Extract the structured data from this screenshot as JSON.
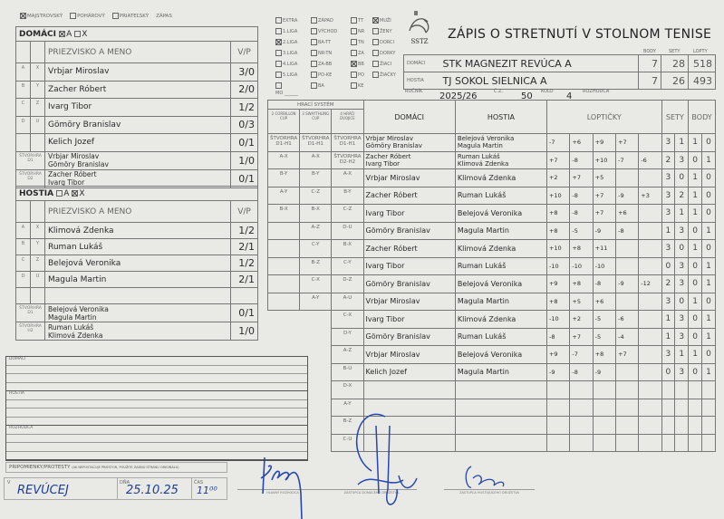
{
  "form": {
    "type_options": [
      {
        "label": "MAJSTROVSKÝ",
        "checked": true
      },
      {
        "label": "POHÁROVÝ",
        "checked": false
      },
      {
        "label": "PRIATEĽSKÝ",
        "checked": false
      }
    ],
    "type_suffix": "ZÁPAS",
    "title": "ZÁPIS O STRETNUTÍ V STOLNOM TENISE",
    "logo_text": "SSTZ",
    "league_options": [
      [
        {
          "label": "EXTRA",
          "checked": false
        },
        {
          "label": "1.LIGA",
          "checked": false
        },
        {
          "label": "2.LIGA",
          "checked": true
        },
        {
          "label": "3.LIGA",
          "checked": false
        },
        {
          "label": "4.LIGA",
          "checked": false
        },
        {
          "label": "5.LIGA",
          "checked": false
        },
        {
          "label": "",
          "checked": false
        }
      ],
      [
        {
          "label": "ZÁPAD",
          "checked": false
        },
        {
          "label": "VÝCHOD",
          "checked": false
        },
        {
          "label": "BA-TT",
          "checked": false
        },
        {
          "label": "NR-TN",
          "checked": false
        },
        {
          "label": "ZA-BB",
          "checked": false
        },
        {
          "label": "PO-KE",
          "checked": false
        },
        {
          "label": "BA",
          "checked": false
        }
      ],
      [
        {
          "label": "TT",
          "checked": false
        },
        {
          "label": "NR",
          "checked": false
        },
        {
          "label": "TN",
          "checked": false
        },
        {
          "label": "ZA",
          "checked": false
        },
        {
          "label": "BB",
          "checked": true
        },
        {
          "label": "PO",
          "checked": false
        },
        {
          "label": "KE",
          "checked": false
        }
      ],
      [
        {
          "label": "MUŽI",
          "checked": true
        },
        {
          "label": "ŽENY",
          "checked": false
        },
        {
          "label": "DORCI",
          "checked": false
        },
        {
          "label": "DORKY",
          "checked": false
        },
        {
          "label": "ŽIACI",
          "checked": false
        },
        {
          "label": "ŽIAČKY",
          "checked": false
        }
      ]
    ],
    "mo_label": "MO"
  },
  "home": {
    "heading": "DOMÁCI",
    "opt_a": "A",
    "opt_x": "X",
    "a_checked": true,
    "x_checked": false,
    "col_name": "PRIEZVISKO A MENO",
    "col_vp": "V/P",
    "players": [
      {
        "k1": "A",
        "k2": "X",
        "name": "Vrbjar Miroslav",
        "vp": "3/0"
      },
      {
        "k1": "B",
        "k2": "Y",
        "name": "Zacher Róbert",
        "vp": "2/0"
      },
      {
        "k1": "C",
        "k2": "Z",
        "name": "Ivarg Tibor",
        "vp": "1/2"
      },
      {
        "k1": "D",
        "k2": "U",
        "name": "Gömöry Branislav",
        "vp": "0/3"
      },
      {
        "k1": "",
        "k2": "",
        "name": "Kelich Jozef",
        "vp": "0/1"
      }
    ],
    "doubles": [
      {
        "label": "ŠTVORHRA D1",
        "p1": "Vrbjar Miroslav",
        "p2": "Gömöry Branislav",
        "vp": "1/0"
      },
      {
        "label": "ŠTVORHRA D2",
        "p1": "Zacher Róbert",
        "p2": "Ivarg Tibor",
        "vp": "0/1"
      }
    ]
  },
  "away": {
    "heading": "HOSTIA",
    "opt_a": "A",
    "opt_x": "X",
    "a_checked": false,
    "x_checked": true,
    "col_name": "PRIEZVISKO A MENO",
    "col_vp": "V/P",
    "players": [
      {
        "k1": "A",
        "k2": "X",
        "name": "Klimová Zdenka",
        "vp": "1/2"
      },
      {
        "k1": "B",
        "k2": "Y",
        "name": "Ruman Lukáš",
        "vp": "2/1"
      },
      {
        "k1": "C",
        "k2": "Z",
        "name": "Belejová Veronika",
        "vp": "1/2"
      },
      {
        "k1": "D",
        "k2": "U",
        "name": "Magula Martin",
        "vp": "2/1"
      },
      {
        "k1": "",
        "k2": "",
        "name": "",
        "vp": ""
      }
    ],
    "doubles": [
      {
        "label": "ŠTVORHRA D1",
        "p1": "Belejová Veronika",
        "p2": "Magula Martin",
        "vp": "0/1"
      },
      {
        "label": "ŠTVORHRA H2",
        "p1": "Ruman Lukáš",
        "p2": "Klimová Zdenka",
        "vp": "1/0"
      }
    ]
  },
  "summary": {
    "col_body": "BODY",
    "col_sety": "SETY",
    "col_lopty": "LOPTY",
    "home_label": "DOMÁCI",
    "home_team": "STK MAGNEZIT REVÚCA A",
    "home_body": "7",
    "home_sety": "28",
    "home_lopty": "518",
    "away_label": "HOSTIA",
    "away_team": "TJ SOKOL SIELNICA A",
    "away_body": "7",
    "away_sety": "26",
    "away_lopty": "493",
    "rocnik_label": "ROČNÍK",
    "rocnik": "2025/26",
    "cz_label": "Č.Z.",
    "cz": "50",
    "kolo_label": "KOLO",
    "kolo": "4",
    "rozhodca_label": "ROZHODCA",
    "rozhodca": ""
  },
  "matches": {
    "system_label": "HRACÍ SYSTÉM",
    "sys_headers": [
      "2 CORBILLON CUP",
      "3 SWAYTHLING CUP",
      "4 HRÁČI DVOJICE"
    ],
    "col_home": "DOMÁCI",
    "col_away": "HOSTIA",
    "col_balls": "LOPTIČKY",
    "col_sets": "SETY",
    "col_points": "BODY",
    "rows": [
      {
        "s1": "ŠTVORHRA D1-H1",
        "s2": "ŠTVORHRA D1-H1",
        "s3": "ŠTVORHRA D1-H1",
        "home": "Vrbjar Miroslav / Gömöry Branislav",
        "away": "Belejová Veronika / Magula Martin",
        "balls": [
          "-7",
          "+6",
          "+9",
          "+7",
          ""
        ],
        "sets": [
          "3",
          "1"
        ],
        "points": [
          "1",
          "0"
        ]
      },
      {
        "s1": "A-X",
        "s2": "A-X",
        "s3": "ŠTVORHRA D2-H2",
        "home": "Zacher Róbert / Ivarg Tibor",
        "away": "Ruman Lukáš / Klimová Zdenka",
        "balls": [
          "+7",
          "-8",
          "+10",
          "-7",
          "-6"
        ],
        "sets": [
          "2",
          "3"
        ],
        "points": [
          "0",
          "1"
        ]
      },
      {
        "s1": "B-Y",
        "s2": "B-Y",
        "s3": "A-X",
        "home": "Vrbjar Miroslav",
        "away": "Klimová Zdenka",
        "balls": [
          "+2",
          "+7",
          "+5",
          "",
          ""
        ],
        "sets": [
          "3",
          "0"
        ],
        "points": [
          "1",
          "0"
        ]
      },
      {
        "s1": "A-Y",
        "s2": "C-Z",
        "s3": "B-Y",
        "home": "Zacher Róbert",
        "away": "Ruman Lukáš",
        "balls": [
          "+10",
          "-8",
          "+7",
          "-9",
          "+3"
        ],
        "sets": [
          "3",
          "2"
        ],
        "points": [
          "1",
          "0"
        ]
      },
      {
        "s1": "B-X",
        "s2": "B-X",
        "s3": "C-Z",
        "home": "Ivarg Tibor",
        "away": "Belejová Veronika",
        "balls": [
          "+8",
          "-8",
          "+7",
          "+6",
          ""
        ],
        "sets": [
          "3",
          "1"
        ],
        "points": [
          "1",
          "0"
        ]
      },
      {
        "s1": "",
        "s2": "A-Z",
        "s3": "D-U",
        "home": "Gömöry Branislav",
        "away": "Magula Martin",
        "balls": [
          "+8",
          "-5",
          "-9",
          "-8",
          ""
        ],
        "sets": [
          "1",
          "3"
        ],
        "points": [
          "0",
          "1"
        ]
      },
      {
        "s1": "",
        "s2": "C-Y",
        "s3": "B-X",
        "home": "Zacher Róbert",
        "away": "Klimová Zdenka",
        "balls": [
          "+10",
          "+8",
          "+11",
          "",
          ""
        ],
        "sets": [
          "3",
          "0"
        ],
        "points": [
          "1",
          "0"
        ]
      },
      {
        "s1": "",
        "s2": "B-Z",
        "s3": "C-Y",
        "home": "Ivarg Tibor",
        "away": "Ruman Lukáš",
        "balls": [
          "-10",
          "-10",
          "-10",
          "",
          ""
        ],
        "sets": [
          "0",
          "3"
        ],
        "points": [
          "0",
          "1"
        ]
      },
      {
        "s1": "",
        "s2": "C-X",
        "s3": "D-Z",
        "home": "Gömöry Branislav",
        "away": "Belejová Veronika",
        "balls": [
          "+9",
          "+8",
          "-8",
          "-9",
          "-12"
        ],
        "sets": [
          "2",
          "3"
        ],
        "points": [
          "0",
          "1"
        ]
      },
      {
        "s1": "",
        "s2": "A-Y",
        "s3": "A-U",
        "home": "Vrbjar Miroslav",
        "away": "Magula Martin",
        "balls": [
          "+8",
          "+5",
          "+6",
          "",
          ""
        ],
        "sets": [
          "3",
          "0"
        ],
        "points": [
          "1",
          "0"
        ]
      },
      {
        "s1": null,
        "s2": null,
        "s3": "C-X",
        "home": "Ivarg Tibor",
        "away": "Klimová Zdenka",
        "balls": [
          "-10",
          "+2",
          "-5",
          "-6",
          ""
        ],
        "sets": [
          "1",
          "3"
        ],
        "points": [
          "0",
          "1"
        ]
      },
      {
        "s1": null,
        "s2": null,
        "s3": "D-Y",
        "home": "Gömöry Branislav",
        "away": "Ruman Lukáš",
        "balls": [
          "-8",
          "+7",
          "-5",
          "-4",
          ""
        ],
        "sets": [
          "1",
          "3"
        ],
        "points": [
          "0",
          "1"
        ]
      },
      {
        "s1": null,
        "s2": null,
        "s3": "A-Z",
        "home": "Vrbjar Miroslav",
        "away": "Belejová Veronika",
        "balls": [
          "+9",
          "-7",
          "+8",
          "+7",
          ""
        ],
        "sets": [
          "3",
          "1"
        ],
        "points": [
          "1",
          "0"
        ]
      },
      {
        "s1": null,
        "s2": null,
        "s3": "B-U",
        "home": "Kelich Jozef",
        "away": "Magula Martin",
        "balls": [
          "-9",
          "-8",
          "-9",
          "",
          ""
        ],
        "sets": [
          "0",
          "3"
        ],
        "points": [
          "0",
          "1"
        ]
      },
      {
        "s1": null,
        "s2": null,
        "s3": "D-X",
        "home": "",
        "away": "",
        "balls": [
          "",
          "",
          "",
          "",
          ""
        ],
        "sets": [
          "",
          ""
        ],
        "points": [
          "",
          ""
        ]
      },
      {
        "s1": null,
        "s2": null,
        "s3": "A-Y",
        "home": "",
        "away": "",
        "balls": [
          "",
          "",
          "",
          "",
          ""
        ],
        "sets": [
          "",
          ""
        ],
        "points": [
          "",
          ""
        ]
      },
      {
        "s1": null,
        "s2": null,
        "s3": "B-Z",
        "home": "",
        "away": "",
        "balls": [
          "",
          "",
          "",
          "",
          ""
        ],
        "sets": [
          "",
          ""
        ],
        "points": [
          "",
          ""
        ]
      },
      {
        "s1": null,
        "s2": null,
        "s3": "C-U",
        "home": "",
        "away": "",
        "balls": [
          "",
          "",
          "",
          "",
          ""
        ],
        "sets": [
          "",
          ""
        ],
        "points": [
          "",
          ""
        ]
      }
    ]
  },
  "notes": {
    "home_label": "DOMÁCI",
    "away_label": "HOSTIA",
    "referee_label": "ROZHODCA",
    "protests_label": "PRIPOMIENKY/PROTESTY",
    "protests_hint": "(AK NEPOSTAČUJE PRIESTOR, POUŽITE ZADNÚ STRANU ORIGINÁLU)"
  },
  "footer": {
    "place_label": "V",
    "place": "REVÚCEJ",
    "date_label": "DŇA",
    "date": "25.10.25",
    "time_label": "ČAS",
    "time": "11⁰⁰",
    "sig1_label": "HLAVNÝ ROZHODCA",
    "sig2_label": "ZÁSTUPCA DOMÁCEHO DRUŽSTVA",
    "sig3_label": "ZÁSTUPCA HOSTUJÚCEHO DRUŽSTVA"
  },
  "colors": {
    "paper": "#e9e9e6",
    "ink": "#1c3d9c",
    "lines": "#777777"
  }
}
